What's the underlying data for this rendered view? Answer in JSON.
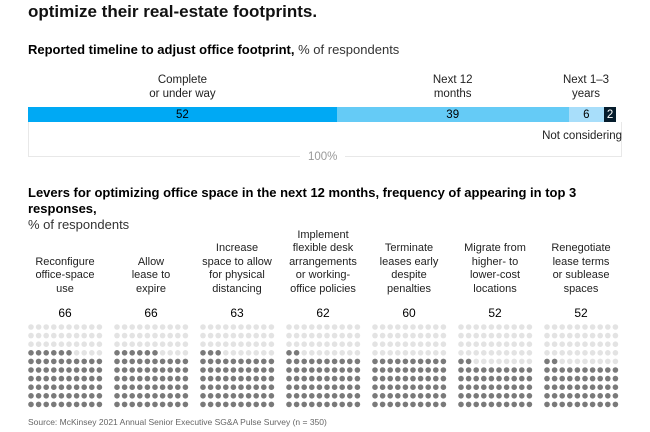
{
  "headline": "optimize their real-estate footprints.",
  "chart_data": [
    {
      "type": "bar",
      "title": "Reported timeline to adjust office footprint,",
      "unit": "% of respondents",
      "stacked": true,
      "total_label": "100%",
      "categories": [
        "Complete or under way",
        "Next 12 months",
        "Next 1–3 years",
        "Not considering"
      ],
      "label_lines": [
        [
          "Complete",
          "or under way"
        ],
        [
          "Next 12",
          "months"
        ],
        [
          "Next 1–3",
          "years"
        ],
        [
          "Not considering"
        ]
      ],
      "values": [
        52,
        39,
        6,
        2
      ],
      "colors": [
        "#00a9f4",
        "#65cbf6",
        "#a8defa",
        "#051c2c"
      ]
    },
    {
      "type": "waffle",
      "title": "Levers for optimizing office space in the next 12 months, frequency of appearing in top 3 responses,",
      "unit": "% of respondents",
      "categories": [
        "Reconfigure office-space use",
        "Allow lease to expire",
        "Increase space to allow for physical distancing",
        "Implement flexible desk arrangements or working-office policies",
        "Terminate leases early despite penalties",
        "Migrate from higher- to lower-cost locations",
        "Renegotiate lease terms or sublease spaces"
      ],
      "label_lines": [
        [
          "Reconfigure",
          "office-space",
          "use"
        ],
        [
          "Allow",
          "lease to",
          "expire"
        ],
        [
          "Increase",
          "space to allow",
          "for physical",
          "distancing"
        ],
        [
          "Implement",
          "flexible desk",
          "arrangements",
          "or working-",
          "office policies"
        ],
        [
          "Terminate",
          "leases early",
          "despite",
          "penalties"
        ],
        [
          "Migrate from",
          "higher- to",
          "lower-cost",
          "locations"
        ],
        [
          "Renegotiate",
          "lease terms",
          "or sublease",
          "spaces"
        ]
      ],
      "values": [
        66,
        66,
        63,
        62,
        60,
        52,
        52
      ],
      "colors": {
        "filled": "#7a7a7a",
        "empty": "#e3e3e3"
      }
    }
  ],
  "source": "Source: McKinsey 2021 Annual Senior Executive SG&A Pulse Survey (n = 350)"
}
